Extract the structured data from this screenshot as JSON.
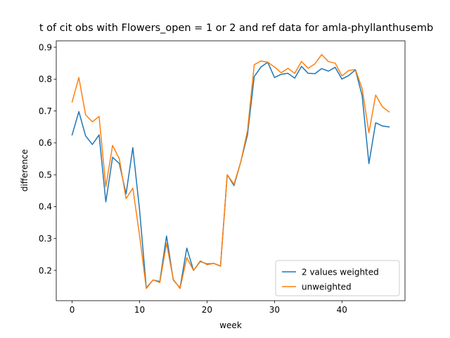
{
  "chart_data": {
    "type": "line",
    "title": "t of cit obs with Flowers_open = 1 or 2 and ref data for amla-phyllanthusemb",
    "xlabel": "week",
    "ylabel": "difference",
    "xlim": [
      -2.35,
      49.35
    ],
    "ylim": [
      0.105,
      0.92
    ],
    "xticks": [
      0,
      10,
      20,
      30,
      40
    ],
    "yticks": [
      0.2,
      0.3,
      0.4,
      0.5,
      0.6,
      0.7,
      0.8,
      0.9
    ],
    "xtick_labels": [
      "0",
      "10",
      "20",
      "30",
      "40"
    ],
    "ytick_labels": [
      "0.2",
      "0.3",
      "0.4",
      "0.5",
      "0.6",
      "0.7",
      "0.8",
      "0.9"
    ],
    "grid": false,
    "legend_position": "lower-right",
    "x": [
      0,
      1,
      2,
      3,
      4,
      5,
      6,
      7,
      8,
      9,
      10,
      11,
      12,
      13,
      14,
      15,
      16,
      17,
      18,
      19,
      20,
      21,
      22,
      23,
      24,
      25,
      26,
      27,
      28,
      29,
      30,
      31,
      32,
      33,
      34,
      35,
      36,
      37,
      38,
      39,
      40,
      41,
      42,
      43,
      44,
      45,
      46,
      47
    ],
    "series": [
      {
        "name": "2 values weighted",
        "color": "#1f77b4",
        "values": [
          0.625,
          0.698,
          0.622,
          0.595,
          0.625,
          0.415,
          0.555,
          0.535,
          0.44,
          0.585,
          0.39,
          0.145,
          0.17,
          0.165,
          0.308,
          0.17,
          0.145,
          0.27,
          0.2,
          0.228,
          0.22,
          0.222,
          0.214,
          0.5,
          0.466,
          0.54,
          0.625,
          0.808,
          0.838,
          0.853,
          0.805,
          0.815,
          0.818,
          0.803,
          0.84,
          0.818,
          0.817,
          0.833,
          0.825,
          0.837,
          0.8,
          0.811,
          0.829,
          0.748,
          0.535,
          0.663,
          0.653,
          0.65
        ]
      },
      {
        "name": "unweighted",
        "color": "#ff7f0e",
        "values": [
          0.728,
          0.805,
          0.688,
          0.666,
          0.683,
          0.462,
          0.592,
          0.55,
          0.425,
          0.458,
          0.31,
          0.143,
          0.17,
          0.162,
          0.285,
          0.172,
          0.143,
          0.24,
          0.2,
          0.23,
          0.218,
          0.222,
          0.213,
          0.5,
          0.47,
          0.54,
          0.638,
          0.845,
          0.857,
          0.853,
          0.838,
          0.82,
          0.834,
          0.818,
          0.855,
          0.834,
          0.848,
          0.877,
          0.855,
          0.85,
          0.81,
          0.827,
          0.83,
          0.77,
          0.632,
          0.75,
          0.713,
          0.697
        ]
      }
    ]
  }
}
